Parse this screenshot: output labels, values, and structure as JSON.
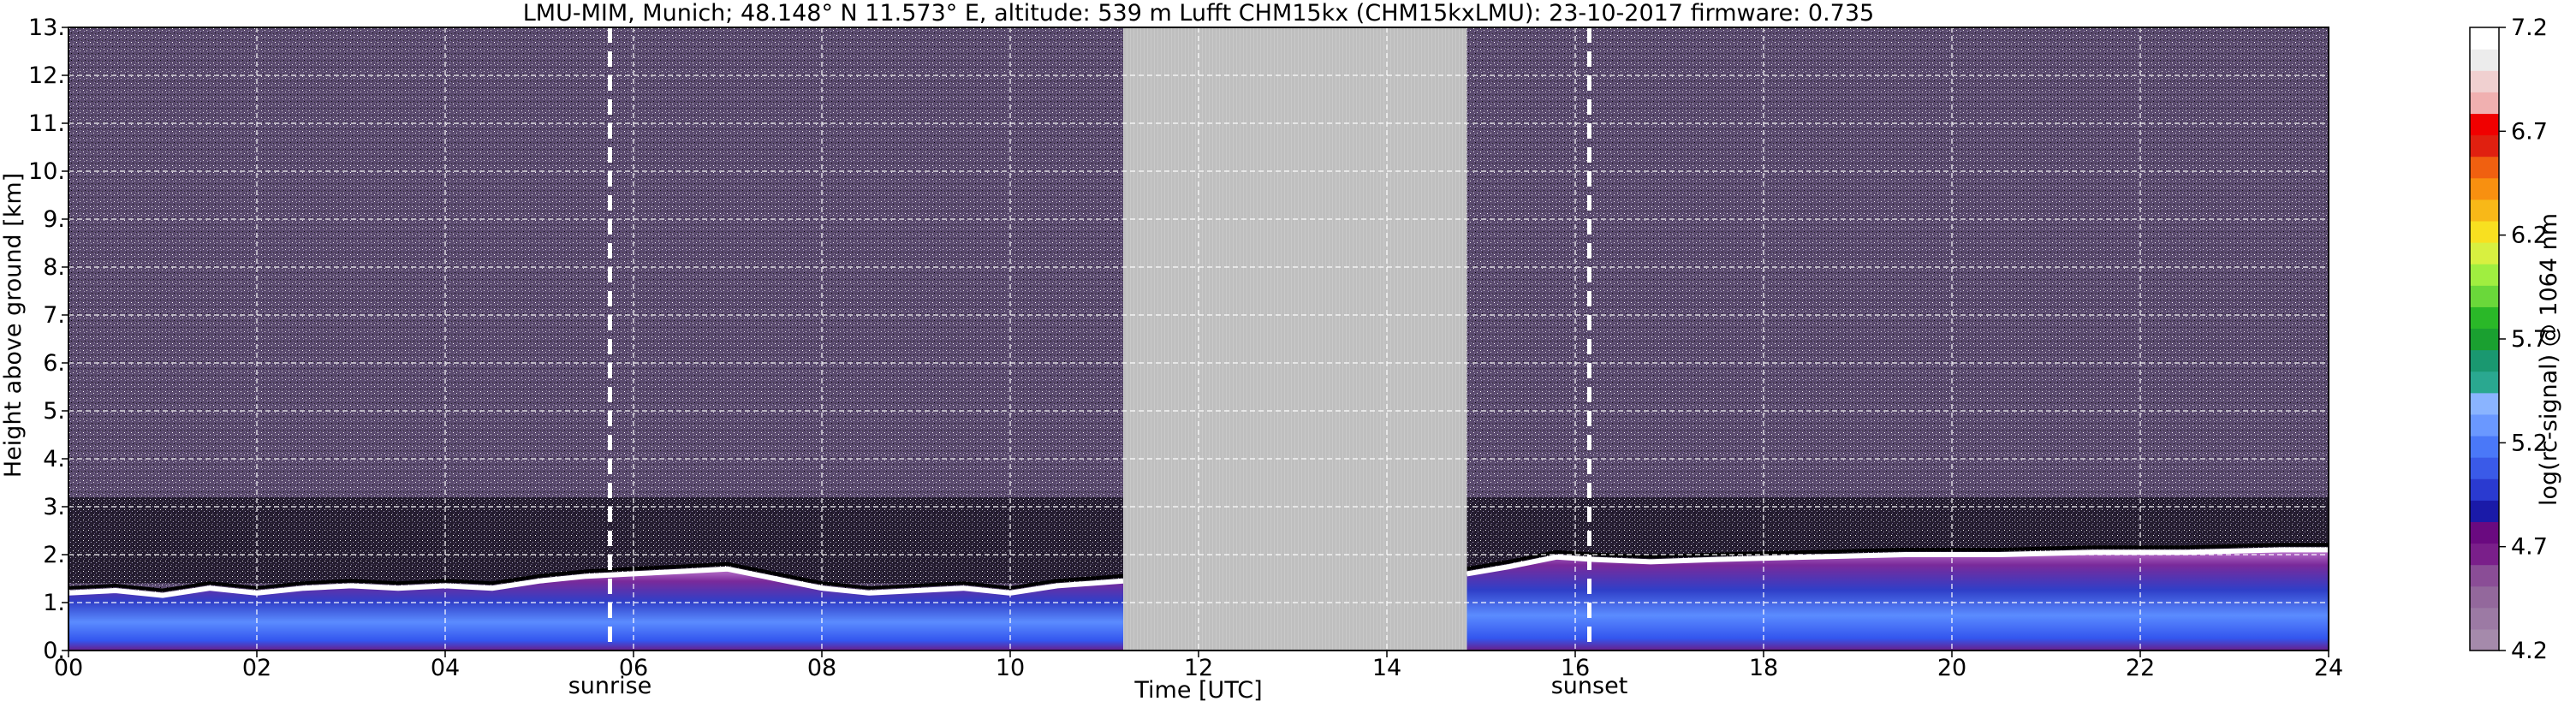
{
  "chart_data": {
    "type": "heatmap",
    "title": "LMU-MIM, Munich; 48.148° N 11.573° E, altitude: 539 m    Lufft CHM15kx (CHM15kxLMU): 23-10-2017    firmware: 0.735",
    "xlabel": "Time [UTC]",
    "ylabel": "Height above ground [km]",
    "xlim": [
      0,
      24
    ],
    "ylim": [
      0,
      13
    ],
    "x_ticks": [
      "00",
      "02",
      "04",
      "06",
      "08",
      "10",
      "12",
      "14",
      "16",
      "18",
      "20",
      "22",
      "24"
    ],
    "x_tick_values": [
      0,
      2,
      4,
      6,
      8,
      10,
      12,
      14,
      16,
      18,
      20,
      22,
      24
    ],
    "y_ticks": [
      "0.",
      "1.",
      "2.",
      "3.",
      "4.",
      "5.",
      "6.",
      "7.",
      "8.",
      "9.",
      "10.",
      "11.",
      "12.",
      "13."
    ],
    "y_tick_values": [
      0,
      1,
      2,
      3,
      4,
      5,
      6,
      7,
      8,
      9,
      10,
      11,
      12,
      13
    ],
    "grid": true,
    "events": [
      {
        "label": "sunrise",
        "time": 5.75
      },
      {
        "label": "sunset",
        "time": 16.15
      }
    ],
    "missing_data": {
      "start": 11.2,
      "end": 14.85
    },
    "boundary_layer_top": [
      {
        "x": 0.0,
        "y": 1.2
      },
      {
        "x": 0.5,
        "y": 1.25
      },
      {
        "x": 1.0,
        "y": 1.15
      },
      {
        "x": 1.5,
        "y": 1.3
      },
      {
        "x": 2.0,
        "y": 1.2
      },
      {
        "x": 2.5,
        "y": 1.3
      },
      {
        "x": 3.0,
        "y": 1.35
      },
      {
        "x": 3.5,
        "y": 1.3
      },
      {
        "x": 4.0,
        "y": 1.35
      },
      {
        "x": 4.5,
        "y": 1.3
      },
      {
        "x": 5.0,
        "y": 1.45
      },
      {
        "x": 5.5,
        "y": 1.55
      },
      {
        "x": 6.0,
        "y": 1.6
      },
      {
        "x": 6.5,
        "y": 1.65
      },
      {
        "x": 7.0,
        "y": 1.7
      },
      {
        "x": 7.5,
        "y": 1.5
      },
      {
        "x": 8.0,
        "y": 1.3
      },
      {
        "x": 8.5,
        "y": 1.2
      },
      {
        "x": 9.0,
        "y": 1.25
      },
      {
        "x": 9.5,
        "y": 1.3
      },
      {
        "x": 10.0,
        "y": 1.2
      },
      {
        "x": 10.5,
        "y": 1.35
      },
      {
        "x": 11.2,
        "y": 1.45
      },
      {
        "x": 14.85,
        "y": 1.6
      },
      {
        "x": 15.3,
        "y": 1.75
      },
      {
        "x": 15.8,
        "y": 1.95
      },
      {
        "x": 16.2,
        "y": 1.9
      },
      {
        "x": 16.8,
        "y": 1.85
      },
      {
        "x": 17.5,
        "y": 1.9
      },
      {
        "x": 18.5,
        "y": 1.95
      },
      {
        "x": 19.5,
        "y": 2.0
      },
      {
        "x": 20.5,
        "y": 2.0
      },
      {
        "x": 21.5,
        "y": 2.05
      },
      {
        "x": 22.5,
        "y": 2.05
      },
      {
        "x": 23.5,
        "y": 2.1
      },
      {
        "x": 24.0,
        "y": 2.1
      }
    ],
    "colorbar": {
      "label": "log(rc-signal) @ 1064 nm",
      "ticks": [
        "4.2",
        "4.7",
        "5.2",
        "5.7",
        "6.2",
        "6.7",
        "7.2"
      ],
      "tick_values": [
        4.2,
        4.7,
        5.2,
        5.7,
        6.2,
        6.7,
        7.2
      ],
      "range": [
        4.2,
        7.2
      ]
    }
  }
}
